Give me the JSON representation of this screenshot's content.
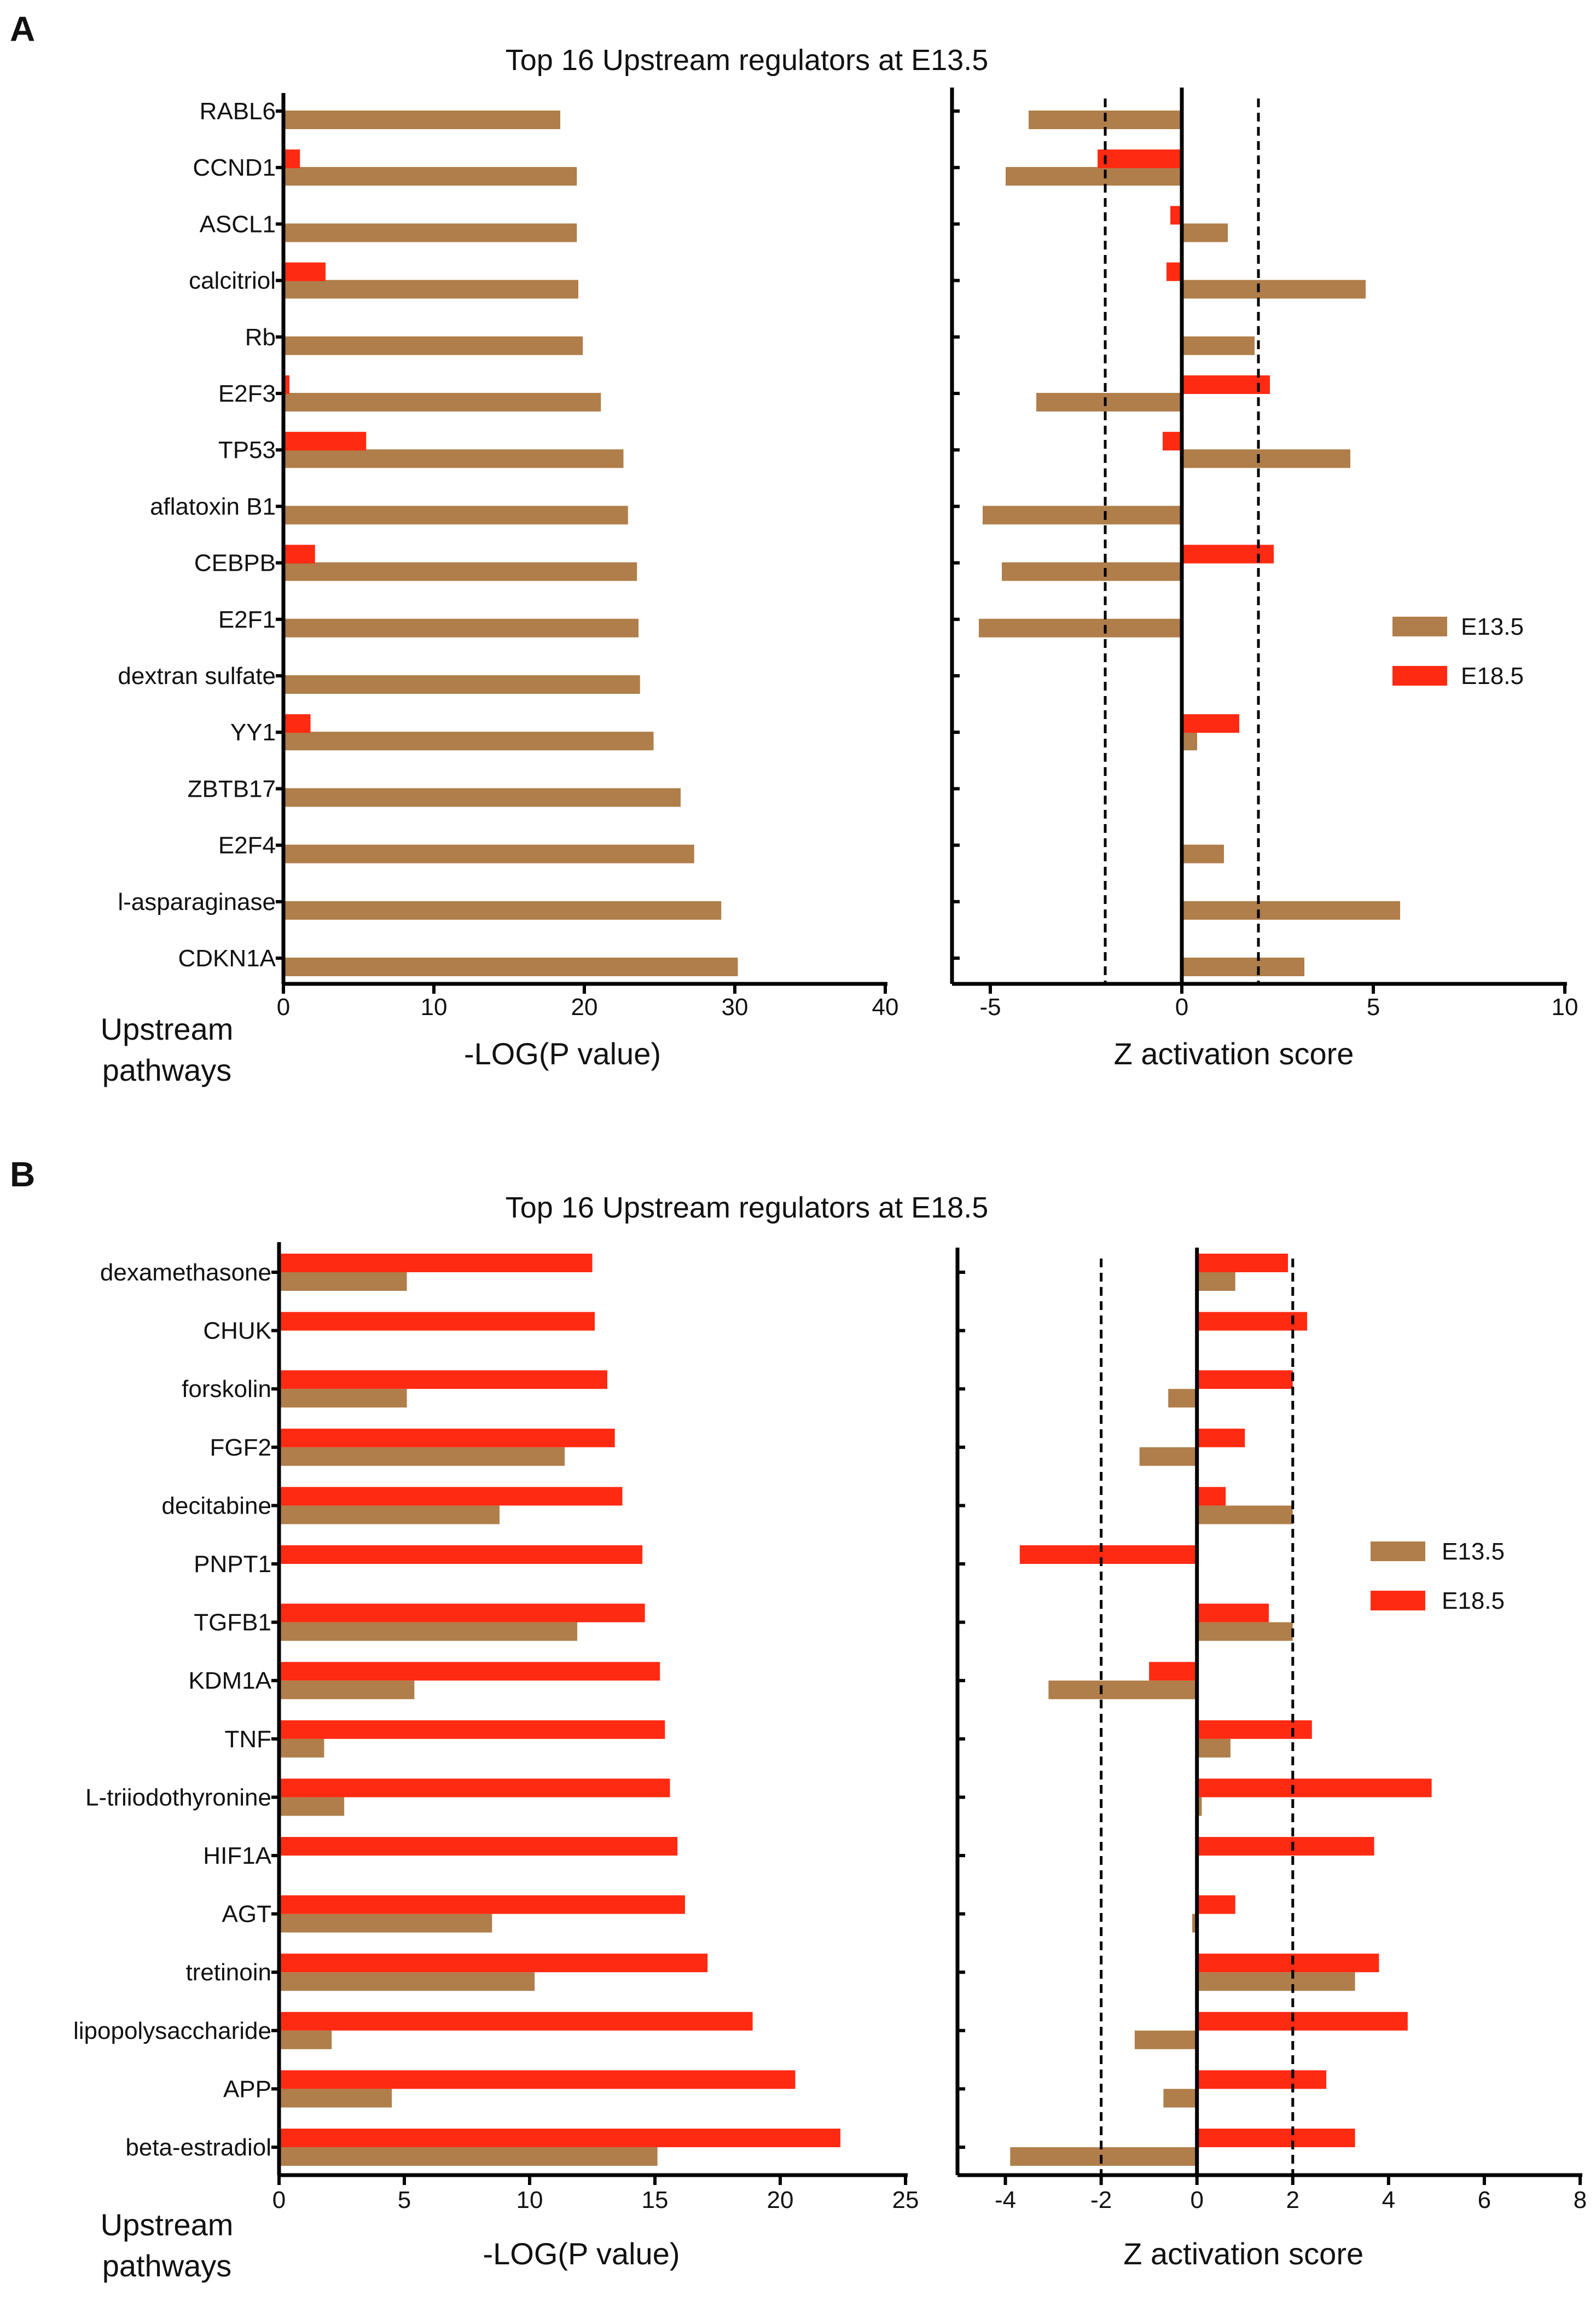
{
  "colors": {
    "e13": "#b07e4a",
    "e18": "#ff2a12",
    "axis": "#000000"
  },
  "chart_data": [
    {
      "type": "bar",
      "panel_label": "A",
      "title": "Top 16 Upstream regulators at E13.5",
      "y_label": "Upstream pathways",
      "legend": [
        "E13.5",
        "E18.5"
      ],
      "legend_position": "right",
      "categories": [
        "RABL6",
        "CCND1",
        "ASCL1",
        "calcitriol",
        "Rb",
        "E2F3",
        "TP53",
        "aflatoxin B1",
        "CEBPB",
        "E2F1",
        "dextran sulfate",
        "YY1",
        "ZBTB17",
        "E2F4",
        "l-asparaginase",
        "CDKN1A"
      ],
      "pvalue_axis": {
        "xlabel": "-LOG(P value)",
        "xlim": [
          0,
          40
        ],
        "ticks": [
          0,
          10,
          20,
          30,
          40
        ],
        "series": [
          {
            "name": "E13.5",
            "values": [
              18.4,
              19.5,
              19.5,
              19.6,
              19.9,
              21.1,
              22.6,
              22.9,
              23.5,
              23.6,
              23.7,
              24.6,
              26.4,
              27.3,
              29.1,
              30.2
            ]
          },
          {
            "name": "E18.5",
            "values": [
              0,
              1.1,
              0,
              2.8,
              0,
              0.4,
              5.5,
              0,
              2.1,
              0,
              0,
              1.8,
              0,
              0,
              0,
              0
            ]
          }
        ]
      },
      "zscore_axis": {
        "xlabel": "Z activation score",
        "xlim": [
          -6,
          10
        ],
        "ticks": [
          -5,
          0,
          5,
          10
        ],
        "threshold_lines": [
          -2,
          2
        ],
        "series": [
          {
            "name": "E13.5",
            "values": [
              -4.0,
              -4.6,
              1.2,
              4.8,
              1.9,
              -3.8,
              4.4,
              -5.2,
              -4.7,
              -5.3,
              null,
              0.4,
              null,
              1.1,
              5.7,
              3.2
            ]
          },
          {
            "name": "E18.5",
            "values": [
              null,
              -2.2,
              -0.3,
              -0.4,
              null,
              2.3,
              -0.5,
              null,
              2.4,
              null,
              null,
              1.5,
              null,
              null,
              null,
              null
            ]
          }
        ]
      }
    },
    {
      "type": "bar",
      "panel_label": "B",
      "title": "Top 16 Upstream regulators at E18.5",
      "y_label": "Upstream pathways",
      "legend": [
        "E13.5",
        "E18.5"
      ],
      "legend_position": "right",
      "categories": [
        "dexamethasone",
        "CHUK",
        "forskolin",
        "FGF2",
        "decitabine",
        "PNPT1",
        "TGFB1",
        "KDM1A",
        "TNF",
        "L-triiodothyronine",
        "HIF1A",
        "AGT",
        "tretinoin",
        "lipopolysaccharide",
        "APP",
        "beta-estradiol"
      ],
      "pvalue_axis": {
        "xlabel": "-LOG(P value)",
        "xlim": [
          0,
          25
        ],
        "ticks": [
          0,
          5,
          10,
          15,
          20,
          25
        ],
        "series": [
          {
            "name": "E13.5",
            "values": [
              5.1,
              0,
              5.1,
              11.4,
              8.8,
              0,
              11.9,
              5.4,
              1.8,
              2.6,
              0,
              8.5,
              10.2,
              2.1,
              4.5,
              15.1
            ]
          },
          {
            "name": "E18.5",
            "values": [
              12.5,
              12.6,
              13.1,
              13.4,
              13.7,
              14.5,
              14.6,
              15.2,
              15.4,
              15.6,
              15.9,
              16.2,
              17.1,
              18.9,
              20.6,
              22.4
            ]
          }
        ]
      },
      "zscore_axis": {
        "xlabel": "Z activation score",
        "xlim": [
          -5,
          8
        ],
        "ticks": [
          -4,
          -2,
          0,
          2,
          4,
          6,
          8
        ],
        "threshold_lines": [
          -2,
          2
        ],
        "series": [
          {
            "name": "E13.5",
            "values": [
              0.8,
              null,
              -0.6,
              -1.2,
              2.0,
              null,
              2.0,
              -3.1,
              0.7,
              0.1,
              null,
              -0.1,
              3.3,
              -1.3,
              -0.7,
              -3.9
            ]
          },
          {
            "name": "E18.5",
            "values": [
              1.9,
              2.3,
              2.0,
              1.0,
              0.6,
              -3.7,
              1.5,
              -1.0,
              2.4,
              4.9,
              3.7,
              0.8,
              3.8,
              4.4,
              2.7,
              3.3
            ]
          }
        ]
      }
    }
  ]
}
